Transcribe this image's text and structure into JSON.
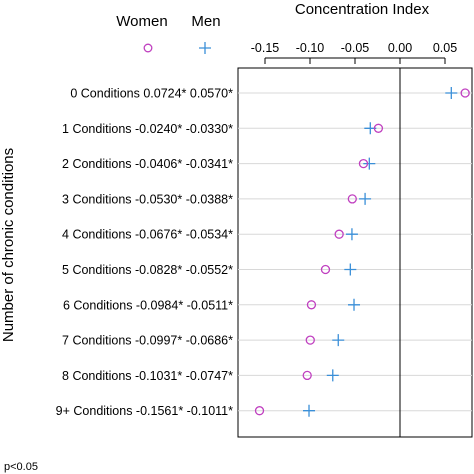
{
  "chart_data": {
    "type": "scatter",
    "title": "Concentration Index",
    "ylabel": "Number of chronic conditions",
    "xlabel": "",
    "footnote": "p<0.05",
    "xlim": [
      -0.18,
      0.08
    ],
    "x_ticks": [
      -0.15,
      -0.1,
      -0.05,
      0.0,
      0.05
    ],
    "x_tick_labels": [
      "-0.15",
      "-0.10",
      "-0.05",
      "0.00",
      "0.05"
    ],
    "reference_line": 0.0,
    "legend": [
      {
        "name": "Women",
        "marker": "circle",
        "color": "#c040c0"
      },
      {
        "name": "Men",
        "marker": "plus",
        "color": "#3a8fd8"
      }
    ],
    "categories": [
      "0 Conditions",
      "1 Conditions",
      "2 Conditions",
      "3 Conditions",
      "4 Conditions",
      "5 Conditions",
      "6 Conditions",
      "7 Conditions",
      "8 Conditions",
      "9+ Conditions"
    ],
    "women_labels": [
      "0.0724*",
      "-0.0240*",
      "-0.0406*",
      "-0.0530*",
      "-0.0676*",
      "-0.0828*",
      "-0.0984*",
      "-0.0997*",
      "-0.1031*",
      "-0.1561*"
    ],
    "men_labels": [
      "0.0570*",
      "-0.0330*",
      "-0.0341*",
      "-0.0388*",
      "-0.0534*",
      "-0.0552*",
      "-0.0511*",
      "-0.0686*",
      "-0.0747*",
      "-0.1011*"
    ],
    "series": [
      {
        "name": "Women",
        "values": [
          0.0724,
          -0.024,
          -0.0406,
          -0.053,
          -0.0676,
          -0.0828,
          -0.0984,
          -0.0997,
          -0.1031,
          -0.1561
        ]
      },
      {
        "name": "Men",
        "values": [
          0.057,
          -0.033,
          -0.0341,
          -0.0388,
          -0.0534,
          -0.0552,
          -0.0511,
          -0.0686,
          -0.0747,
          -0.1011
        ]
      }
    ]
  }
}
